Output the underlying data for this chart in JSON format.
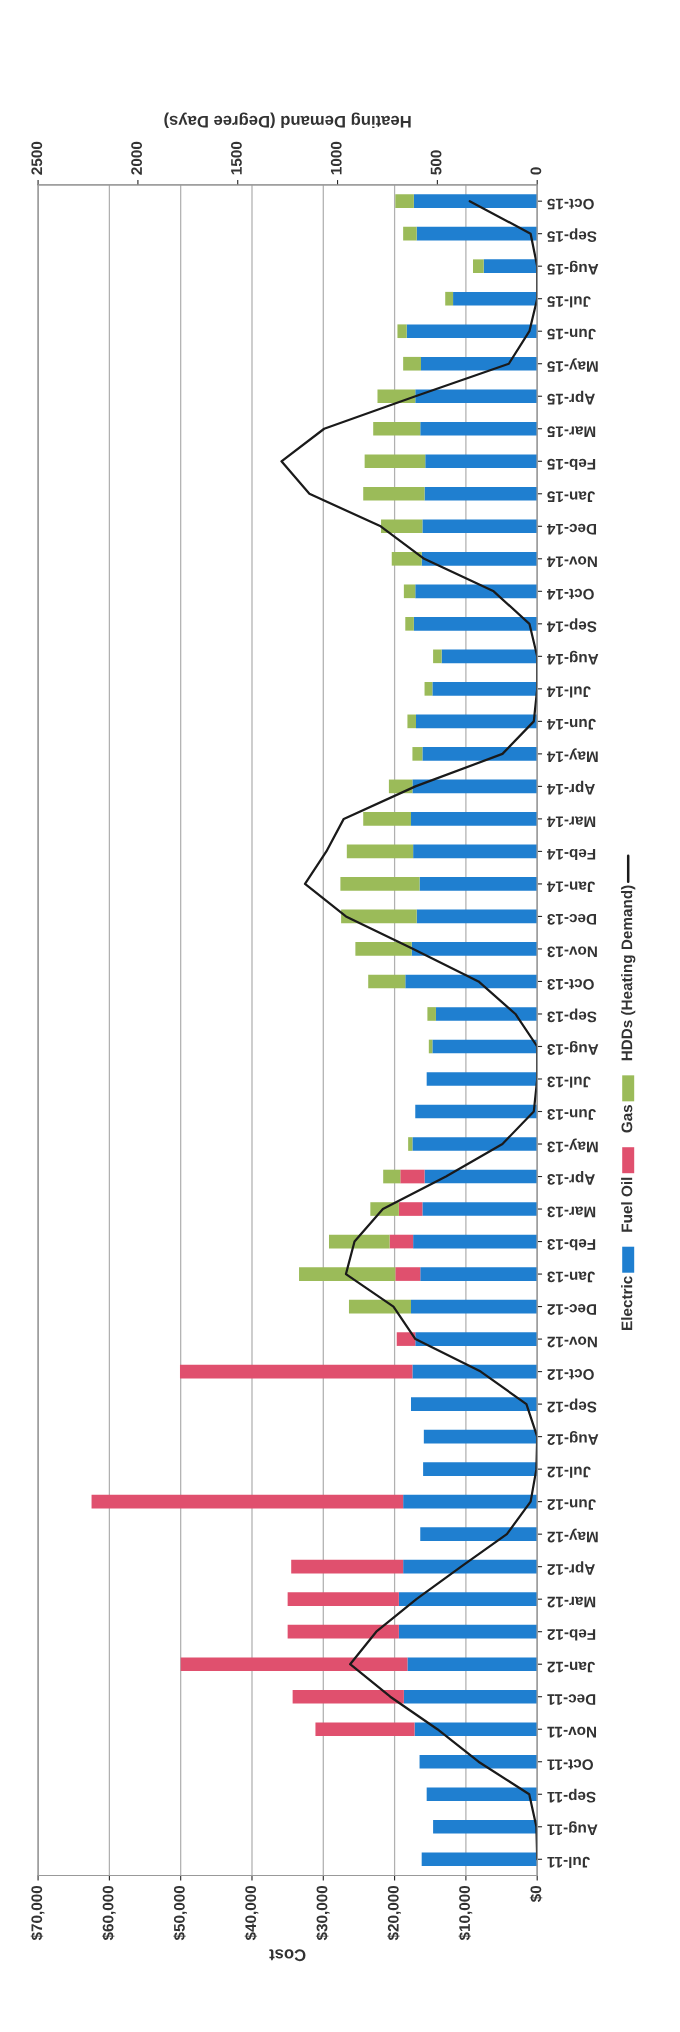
{
  "chart_data": {
    "type": "bar",
    "orientation": "horizontal",
    "stacked": true,
    "xlabel": "Cost",
    "x2label": "Heating Demand (Degree Days)",
    "categories": [
      "Oct-15",
      "Sep-15",
      "Aug-15",
      "Jul-15",
      "Jun-15",
      "May-15",
      "Apr-15",
      "Mar-15",
      "Feb-15",
      "Jan-15",
      "Dec-14",
      "Nov-14",
      "Oct-14",
      "Sep-14",
      "Aug-14",
      "Jul-14",
      "Jun-14",
      "May-14",
      "Apr-14",
      "Mar-14",
      "Feb-14",
      "Jan-14",
      "Dec-13",
      "Nov-13",
      "Oct-13",
      "Sep-13",
      "Aug-13",
      "Jul-13",
      "Jun-13",
      "May-13",
      "Apr-13",
      "Mar-13",
      "Feb-13",
      "Jan-13",
      "Dec-12",
      "Nov-12",
      "Oct-12",
      "Sep-12",
      "Aug-12",
      "Jul-12",
      "Jun-12",
      "May-12",
      "Apr-12",
      "Mar-12",
      "Feb-12",
      "Jan-12",
      "Dec-11",
      "Nov-11",
      "Oct-11",
      "Sep-11",
      "Aug-11",
      "Jul-11"
    ],
    "series": [
      {
        "name": "Electric",
        "color": "#1f7fd0",
        "values": [
          17300,
          16900,
          7500,
          11800,
          18300,
          16300,
          17100,
          16400,
          15700,
          15800,
          16100,
          16200,
          17100,
          17300,
          13400,
          14700,
          17000,
          16100,
          17500,
          17700,
          17400,
          16500,
          16900,
          17600,
          18500,
          14200,
          14700,
          15500,
          17100,
          17500,
          15800,
          16100,
          17400,
          16400,
          17700,
          17100,
          17500,
          17700,
          15900,
          16000,
          18800,
          16400,
          18800,
          19400,
          19400,
          18200,
          18700,
          17200,
          16500,
          15500,
          14600,
          16200
        ]
      },
      {
        "name": "Fuel Oil",
        "color": "#e0506e",
        "values": [
          0,
          0,
          0,
          0,
          0,
          0,
          0,
          0,
          0,
          0,
          0,
          0,
          0,
          0,
          0,
          0,
          0,
          0,
          0,
          0,
          0,
          0,
          0,
          0,
          0,
          0,
          0,
          0,
          0,
          0,
          3400,
          3300,
          3300,
          3500,
          0,
          2600,
          32600,
          0,
          0,
          0,
          43700,
          0,
          15700,
          15600,
          15600,
          31800,
          15600,
          13900,
          0,
          0,
          0,
          0
        ]
      },
      {
        "name": "Gas",
        "color": "#9bbb59",
        "values": [
          2600,
          1900,
          1500,
          1100,
          1300,
          2500,
          5300,
          6600,
          8500,
          8600,
          5800,
          4200,
          1600,
          1200,
          1200,
          1100,
          1200,
          1400,
          3300,
          6700,
          9300,
          11100,
          10600,
          7900,
          5200,
          1200,
          500,
          0,
          0,
          600,
          2400,
          4000,
          8500,
          13500,
          8700,
          0,
          0,
          0,
          0,
          0,
          0,
          0,
          0,
          0,
          0,
          0,
          0,
          0,
          0,
          0,
          0,
          0
        ]
      },
      {
        "name": "HDDs (Heating Demand)",
        "type": "line",
        "axis": "x2",
        "color": "#1a1a1a",
        "values": [
          338,
          33,
          0,
          0,
          39,
          142,
          610,
          1067,
          1281,
          1141,
          784,
          566,
          218,
          39,
          0,
          0,
          17,
          174,
          610,
          969,
          1056,
          1163,
          958,
          621,
          294,
          109,
          0,
          0,
          17,
          174,
          457,
          773,
          915,
          958,
          720,
          610,
          283,
          54,
          0,
          4,
          33,
          152,
          381,
          605,
          806,
          937,
          736,
          500,
          294,
          40,
          4,
          0
        ]
      }
    ],
    "xlim": [
      70000,
      0
    ],
    "xticks": [
      {
        "value": 70000,
        "label": "$70,000"
      },
      {
        "value": 60000,
        "label": "$60,000"
      },
      {
        "value": 50000,
        "label": "$50,000"
      },
      {
        "value": 40000,
        "label": "$40,000"
      },
      {
        "value": 30000,
        "label": "$30,000"
      },
      {
        "value": 20000,
        "label": "$20,000"
      },
      {
        "value": 10000,
        "label": "$10,000"
      },
      {
        "value": 0,
        "label": "$0"
      }
    ],
    "x2lim": [
      2500,
      0
    ],
    "x2ticks": [
      2500,
      2000,
      1500,
      1000,
      500,
      0
    ],
    "grid": "x",
    "legend": "right"
  }
}
